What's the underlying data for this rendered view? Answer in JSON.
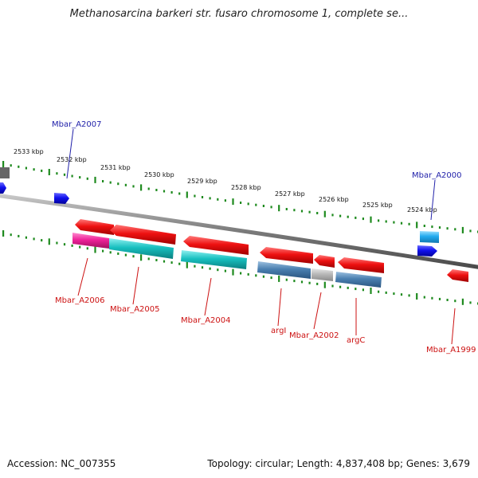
{
  "title": "Methanosarcina barkeri str. fusaro chromosome 1, complete se...",
  "accession": "Accession: NC_007355",
  "topology": "Topology: circular; Length: 4,837,408 bp; Genes: 3,679",
  "colors": {
    "backbone": "#7a7a7a",
    "ticks": "#1e8a1e",
    "forward_label": "#2222aa",
    "reverse_label": "#cc1111",
    "red_gene": "#ee1111",
    "cyan_gene": "#18c0c0",
    "magenta_gene": "#ee2299",
    "steel_gene": "#4a7fb0",
    "grey_gene": "#b0b0b0",
    "blue_gene": "#1111ee",
    "skyblue_gene": "#22aaee"
  },
  "kbp_labels": [
    "2533 kbp",
    "2532 kbp",
    "2531 kbp",
    "2530 kbp",
    "2529 kbp",
    "2528 kbp",
    "2527 kbp",
    "2526 kbp",
    "2525 kbp",
    "2524 kbp"
  ],
  "forward_gene_labels": [
    "Mbar_A2007",
    "Mbar_A2000"
  ],
  "reverse_gene_labels": [
    "Mbar_A2006",
    "Mbar_A2005",
    "Mbar_A2004",
    "argI",
    "Mbar_A2002",
    "argC",
    "Mbar_A1999"
  ]
}
